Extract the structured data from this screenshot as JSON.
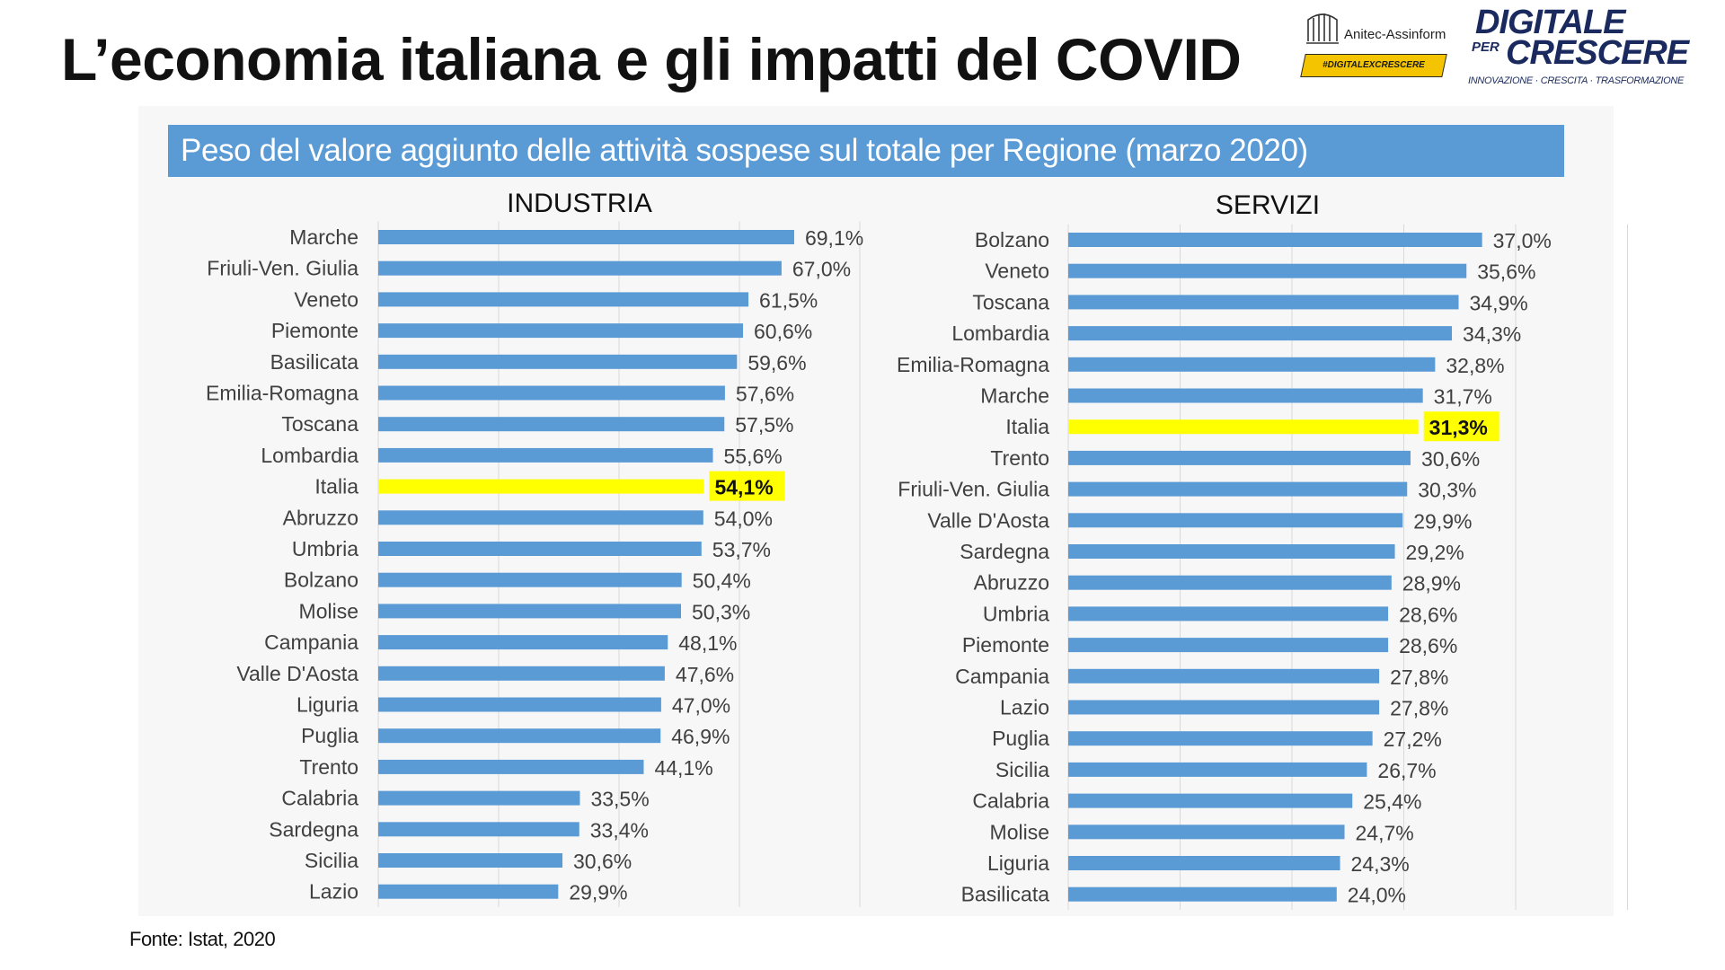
{
  "page": {
    "title": "L’economia italiana e gli impatti del COVID",
    "source": "Fonte: Istat, 2020"
  },
  "logos": {
    "anitec_name": "Anitec-Assinform",
    "anitec_tag": "#DIGITALEXCRESCERE",
    "dpc_line1": "DIGITALE",
    "dpc_per": "PER",
    "dpc_line2": "CRESCERE",
    "dpc_tagline": "INNOVAZIONE · CRESCITA · TRASFORMAZIONE"
  },
  "colors": {
    "bar": "#5b9bd5",
    "highlight": "#ffff00",
    "banner": "#5b9bd5",
    "grid": "#d9d9d9",
    "text": "#404040"
  },
  "chart_data": [
    {
      "type": "bar",
      "orientation": "horizontal",
      "title": "INDUSTRIA",
      "banner_title": "Peso del valore aggiunto delle attività sospese sul totale per Regione (marzo 2020)",
      "unit": "%",
      "xlim": [
        0,
        80
      ],
      "highlight": "Italia",
      "categories": [
        "Marche",
        "Friuli-Ven. Giulia",
        "Veneto",
        "Piemonte",
        "Basilicata",
        "Emilia-Romagna",
        "Toscana",
        "Lombardia",
        "Italia",
        "Abruzzo",
        "Umbria",
        "Bolzano",
        "Molise",
        "Campania",
        "Valle D'Aosta",
        "Liguria",
        "Puglia",
        "Trento",
        "Calabria",
        "Sardegna",
        "Sicilia",
        "Lazio"
      ],
      "values": [
        69.1,
        67.0,
        61.5,
        60.6,
        59.6,
        57.6,
        57.5,
        55.6,
        54.1,
        54.0,
        53.7,
        50.4,
        50.3,
        48.1,
        47.6,
        47.0,
        46.9,
        44.1,
        33.5,
        33.4,
        30.6,
        29.9
      ],
      "labels": [
        "69,1%",
        "67,0%",
        "61,5%",
        "60,6%",
        "59,6%",
        "57,6%",
        "57,5%",
        "55,6%",
        "54,1%",
        "54,0%",
        "53,7%",
        "50,4%",
        "50,3%",
        "48,1%",
        "47,6%",
        "47,0%",
        "46,9%",
        "44,1%",
        "33,5%",
        "33,4%",
        "30,6%",
        "29,9%"
      ]
    },
    {
      "type": "bar",
      "orientation": "horizontal",
      "title": "SERVIZI",
      "unit": "%",
      "xlim": [
        0,
        50
      ],
      "highlight": "Italia",
      "categories": [
        "Bolzano",
        "Veneto",
        "Toscana",
        "Lombardia",
        "Emilia-Romagna",
        "Marche",
        "Italia",
        "Trento",
        "Friuli-Ven. Giulia",
        "Valle D'Aosta",
        "Sardegna",
        "Abruzzo",
        "Umbria",
        "Piemonte",
        "Campania",
        "Lazio",
        "Puglia",
        "Sicilia",
        "Calabria",
        "Molise",
        "Liguria",
        "Basilicata"
      ],
      "values": [
        37.0,
        35.6,
        34.9,
        34.3,
        32.8,
        31.7,
        31.3,
        30.6,
        30.3,
        29.9,
        29.2,
        28.9,
        28.6,
        28.6,
        27.8,
        27.8,
        27.2,
        26.7,
        25.4,
        24.7,
        24.3,
        24.0
      ],
      "labels": [
        "37,0%",
        "35,6%",
        "34,9%",
        "34,3%",
        "32,8%",
        "31,7%",
        "31,3%",
        "30,6%",
        "30,3%",
        "29,9%",
        "29,2%",
        "28,9%",
        "28,6%",
        "28,6%",
        "27,8%",
        "27,8%",
        "27,2%",
        "26,7%",
        "25,4%",
        "24,7%",
        "24,3%",
        "24,0%"
      ]
    }
  ]
}
